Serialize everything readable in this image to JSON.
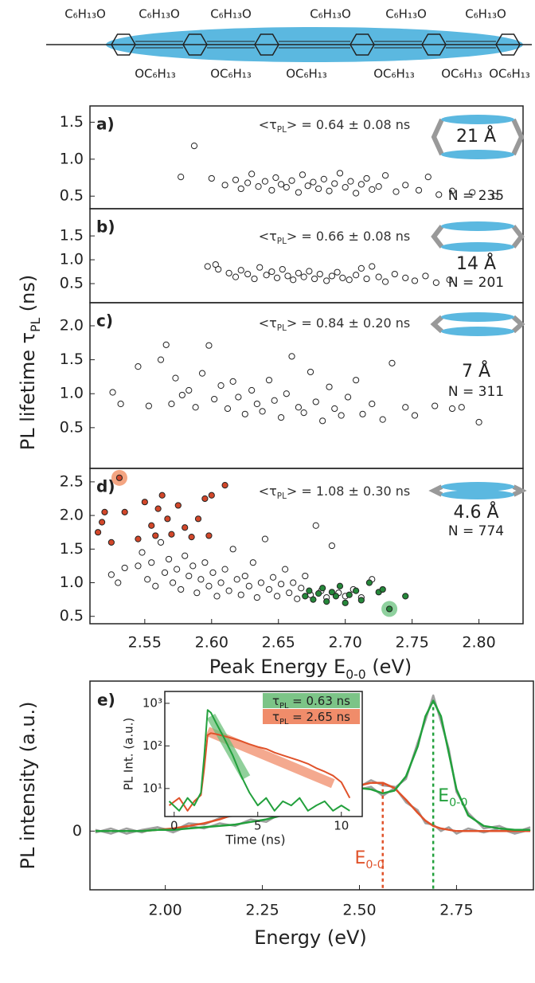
{
  "molecule": {
    "top_labels": [
      "C₆H₁₃O",
      "C₆H₁₃O",
      "C₆H₁₃O",
      "C₆H₁₃O",
      "C₆H₁₃O",
      "C₆H₁₃O"
    ],
    "bottom_labels": [
      "OC₆H₁₃",
      "OC₆H₁₃",
      "OC₆H₁₃",
      "OC₆H₁₃",
      "OC₆H₁₃",
      "OC₆H₁₃"
    ]
  },
  "chart_data": [
    {
      "type": "scatter",
      "label": "a)",
      "ylabel": {
        "text": "PL lifetime τ",
        "sub": "PL",
        "suffix": " (ns)"
      },
      "annotation": {
        "text": "<τ",
        "sub": "PL",
        "suffix": "> = 0.64 ± 0.08 ns"
      },
      "spacer_label": "21 Å",
      "count_label": "N = 235",
      "xlim": [
        2.509,
        2.833
      ],
      "ylim": [
        0.33,
        1.72
      ],
      "yticks": [
        0.5,
        {
          "value": 1.0,
          "label": "1.0"
        },
        1.5
      ],
      "series": [
        {
          "color": "#ffffff",
          "x": [
            2.577,
            2.587,
            2.6,
            2.61,
            2.618,
            2.622,
            2.627,
            2.63,
            2.635,
            2.64,
            2.645,
            2.648,
            2.652,
            2.656,
            2.66,
            2.665,
            2.668,
            2.672,
            2.676,
            2.68,
            2.684,
            2.688,
            2.692,
            2.696,
            2.7,
            2.704,
            2.708,
            2.712,
            2.716,
            2.72,
            2.725,
            2.73,
            2.738,
            2.745,
            2.755,
            2.762,
            2.77,
            2.78,
            2.795,
            2.812
          ],
          "values": [
            0.76,
            1.18,
            0.74,
            0.65,
            0.72,
            0.6,
            0.68,
            0.8,
            0.63,
            0.7,
            0.58,
            0.75,
            0.66,
            0.62,
            0.71,
            0.55,
            0.79,
            0.64,
            0.69,
            0.6,
            0.73,
            0.57,
            0.67,
            0.81,
            0.62,
            0.7,
            0.54,
            0.66,
            0.74,
            0.59,
            0.63,
            0.78,
            0.56,
            0.65,
            0.58,
            0.76,
            0.52,
            0.57,
            0.55,
            0.5
          ]
        }
      ]
    },
    {
      "type": "scatter",
      "label": "b)",
      "annotation": {
        "text": "<τ",
        "sub": "PL",
        "suffix": "> = 0.66 ± 0.08 ns"
      },
      "spacer_label": "14 Å",
      "count_label": "N = 201",
      "xlim": [
        2.509,
        2.833
      ],
      "ylim": [
        0.1,
        2.07
      ],
      "yticks": [
        0.5,
        {
          "value": 1.0,
          "label": "1.0"
        },
        1.5
      ],
      "series": [
        {
          "color": "#ffffff",
          "x": [
            2.597,
            2.603,
            2.605,
            2.613,
            2.618,
            2.622,
            2.627,
            2.632,
            2.636,
            2.641,
            2.645,
            2.649,
            2.653,
            2.657,
            2.661,
            2.665,
            2.669,
            2.673,
            2.677,
            2.681,
            2.686,
            2.69,
            2.694,
            2.698,
            2.703,
            2.708,
            2.712,
            2.716,
            2.72,
            2.725,
            2.73,
            2.737,
            2.745,
            2.752,
            2.76,
            2.768,
            2.778
          ],
          "values": [
            0.86,
            0.9,
            0.8,
            0.72,
            0.64,
            0.78,
            0.7,
            0.6,
            0.84,
            0.68,
            0.75,
            0.62,
            0.8,
            0.66,
            0.58,
            0.72,
            0.64,
            0.76,
            0.6,
            0.7,
            0.56,
            0.66,
            0.74,
            0.62,
            0.58,
            0.68,
            0.82,
            0.6,
            0.86,
            0.64,
            0.54,
            0.7,
            0.62,
            0.56,
            0.66,
            0.52,
            0.58
          ]
        }
      ]
    },
    {
      "type": "scatter",
      "label": "c)",
      "annotation": {
        "text": "<τ",
        "sub": "PL",
        "suffix": "> = 0.84 ± 0.20 ns"
      },
      "spacer_label": "7 Å",
      "count_label": "N = 311",
      "xlim": [
        2.509,
        2.833
      ],
      "ylim": [
        -0.1,
        2.34
      ],
      "yticks": [
        0.5,
        {
          "value": 1.0,
          "label": "1.0"
        },
        1.5,
        {
          "value": 2.0,
          "label": "2.0"
        }
      ],
      "series": [
        {
          "color": "#ffffff",
          "x": [
            2.526,
            2.532,
            2.545,
            2.553,
            2.562,
            2.566,
            2.57,
            2.573,
            2.578,
            2.583,
            2.588,
            2.593,
            2.598,
            2.602,
            2.607,
            2.612,
            2.616,
            2.62,
            2.625,
            2.63,
            2.634,
            2.638,
            2.643,
            2.647,
            2.652,
            2.656,
            2.66,
            2.665,
            2.669,
            2.674,
            2.678,
            2.683,
            2.688,
            2.692,
            2.697,
            2.702,
            2.708,
            2.713,
            2.72,
            2.728,
            2.735,
            2.745,
            2.752,
            2.767,
            2.78,
            2.787,
            2.8
          ],
          "values": [
            1.02,
            0.85,
            1.4,
            0.82,
            1.5,
            1.72,
            0.85,
            1.23,
            0.98,
            1.05,
            0.8,
            1.3,
            1.71,
            0.92,
            1.12,
            0.78,
            1.18,
            0.95,
            0.7,
            1.05,
            0.85,
            0.74,
            1.2,
            0.9,
            0.65,
            1.0,
            1.55,
            0.8,
            0.72,
            1.32,
            0.88,
            0.6,
            1.1,
            0.78,
            0.68,
            0.95,
            1.2,
            0.7,
            0.85,
            0.62,
            1.45,
            0.8,
            0.68,
            0.82,
            0.78,
            0.8,
            0.58
          ]
        }
      ]
    },
    {
      "type": "scatter",
      "label": "d)",
      "xlabel": {
        "text": "Peak Energy E",
        "sub": "0-0",
        "suffix": " (eV)"
      },
      "annotation": {
        "text": "<τ",
        "sub": "PL",
        "suffix": "> = 1.08 ± 0.30 ns"
      },
      "spacer_label": "4.6 Å",
      "count_label": "N = 774",
      "xlim": [
        2.509,
        2.833
      ],
      "ylim": [
        0.39,
        2.7
      ],
      "xticks": [
        2.55,
        {
          "value": 2.6,
          "label": "2.60"
        },
        2.65,
        {
          "value": 2.7,
          "label": "2.70"
        },
        2.75,
        {
          "value": 2.8,
          "label": "2.80"
        }
      ],
      "yticks": [
        0.5,
        {
          "value": 1.0,
          "label": "1.0"
        },
        1.5,
        {
          "value": 2.0,
          "label": "2.0"
        },
        2.5
      ],
      "series": [
        {
          "color": "#ffffff",
          "x": [
            2.525,
            2.53,
            2.535,
            2.545,
            2.548,
            2.552,
            2.555,
            2.558,
            2.562,
            2.565,
            2.568,
            2.571,
            2.574,
            2.577,
            2.58,
            2.583,
            2.586,
            2.589,
            2.592,
            2.595,
            2.598,
            2.601,
            2.604,
            2.607,
            2.61,
            2.613,
            2.616,
            2.619,
            2.622,
            2.625,
            2.628,
            2.631,
            2.634,
            2.637,
            2.64,
            2.643,
            2.646,
            2.649,
            2.652,
            2.655,
            2.658,
            2.661,
            2.664,
            2.667,
            2.67,
            2.674,
            2.678,
            2.682,
            2.686,
            2.69,
            2.695,
            2.7,
            2.706,
            2.712,
            2.72
          ],
          "values": [
            1.12,
            1.0,
            1.22,
            1.25,
            1.45,
            1.05,
            1.3,
            0.95,
            1.6,
            1.15,
            1.35,
            1.0,
            1.2,
            0.9,
            1.4,
            1.1,
            1.25,
            0.85,
            1.05,
            1.3,
            0.95,
            1.15,
            0.8,
            1.0,
            1.2,
            0.88,
            1.5,
            1.05,
            0.82,
            1.1,
            0.95,
            1.3,
            0.78,
            1.0,
            1.65,
            0.9,
            1.08,
            0.8,
            0.98,
            1.2,
            0.85,
            1.0,
            0.76,
            0.92,
            1.1,
            0.82,
            1.85,
            0.88,
            0.78,
            1.55,
            0.85,
            0.8,
            0.9,
            0.78,
            1.05
          ]
        },
        {
          "color": "#d2472a",
          "x": [
            2.515,
            2.518,
            2.52,
            2.525,
            2.535,
            2.545,
            2.55,
            2.555,
            2.558,
            2.56,
            2.563,
            2.567,
            2.57,
            2.575,
            2.58,
            2.585,
            2.59,
            2.595,
            2.598,
            2.6,
            2.61
          ],
          "values": [
            1.75,
            1.9,
            2.05,
            1.6,
            2.05,
            1.65,
            2.2,
            1.85,
            1.7,
            2.1,
            2.3,
            1.95,
            1.72,
            2.15,
            1.82,
            1.68,
            1.95,
            2.25,
            1.7,
            2.3,
            2.45
          ]
        },
        {
          "color": "#25883a",
          "x": [
            2.67,
            2.673,
            2.676,
            2.68,
            2.683,
            2.686,
            2.69,
            2.693,
            2.696,
            2.7,
            2.703,
            2.708,
            2.712,
            2.718,
            2.725,
            2.728,
            2.745
          ],
          "values": [
            0.8,
            0.88,
            0.75,
            0.84,
            0.92,
            0.72,
            0.86,
            0.8,
            0.95,
            0.7,
            0.82,
            0.88,
            0.74,
            1.0,
            0.86,
            0.9,
            0.8
          ]
        },
        {
          "color": "#d2472a",
          "halo": "#f4a582",
          "x": [
            2.531
          ],
          "values": [
            2.56
          ]
        },
        {
          "color": "#25883a",
          "halo": "#8fd19e",
          "x": [
            2.733
          ],
          "values": [
            0.61
          ]
        }
      ]
    },
    {
      "type": "line",
      "label": "e)",
      "ylabel": "PL intensity (a.u.)",
      "xlabel": "Energy (eV)",
      "xlim": [
        1.806,
        2.948
      ],
      "ylim": [
        -0.45,
        1.15
      ],
      "xticks": [
        {
          "value": 2.0,
          "label": "2.00"
        },
        2.25,
        {
          "value": 2.5,
          "label": "2.50"
        },
        2.75
      ],
      "yticks": [
        0
      ],
      "x": [
        1.82,
        1.86,
        1.9,
        1.94,
        1.98,
        2.02,
        2.06,
        2.1,
        2.14,
        2.18,
        2.22,
        2.26,
        2.3,
        2.34,
        2.38,
        2.42,
        2.46,
        2.5,
        2.53,
        2.56,
        2.59,
        2.62,
        2.65,
        2.67,
        2.69,
        2.71,
        2.73,
        2.75,
        2.78,
        2.82,
        2.86,
        2.9,
        2.94
      ],
      "series": [
        {
          "color": "#a0a0a0",
          "values": [
            0.01,
            -0.02,
            0.02,
            -0.01,
            0.03,
            -0.01,
            0.04,
            0.02,
            0.06,
            0.04,
            0.09,
            0.07,
            0.14,
            0.13,
            0.22,
            0.21,
            0.31,
            0.32,
            0.34,
            0.27,
            0.33,
            0.4,
            0.68,
            0.85,
            1.04,
            0.84,
            0.63,
            0.3,
            0.14,
            0.02,
            0.04,
            -0.01,
            0.03
          ]
        },
        {
          "color": "#a0a0a0",
          "values": [
            -0.01,
            0.02,
            -0.02,
            0.01,
            0.03,
            0.0,
            0.06,
            0.05,
            0.1,
            0.12,
            0.18,
            0.17,
            0.24,
            0.22,
            0.28,
            0.25,
            0.33,
            0.34,
            0.39,
            0.35,
            0.34,
            0.22,
            0.16,
            0.06,
            0.05,
            0.0,
            0.03,
            -0.02,
            0.02,
            -0.01,
            0.02,
            -0.02,
            0.01
          ]
        },
        {
          "color": "#e0522a",
          "values": [
            0,
            0,
            0,
            0,
            0.01,
            0.02,
            0.04,
            0.06,
            0.09,
            0.13,
            0.16,
            0.19,
            0.22,
            0.24,
            0.26,
            0.27,
            0.31,
            0.35,
            0.37,
            0.37,
            0.33,
            0.24,
            0.14,
            0.08,
            0.04,
            0.02,
            0.01,
            0,
            0,
            0,
            0,
            0,
            0
          ]
        },
        {
          "color": "#22a03c",
          "values": [
            0,
            0,
            0,
            0,
            0.01,
            0.01,
            0.02,
            0.03,
            0.04,
            0.05,
            0.07,
            0.09,
            0.12,
            0.15,
            0.19,
            0.24,
            0.29,
            0.33,
            0.32,
            0.29,
            0.31,
            0.42,
            0.65,
            0.88,
            1.0,
            0.88,
            0.6,
            0.32,
            0.12,
            0.04,
            0.02,
            0.01,
            0.01
          ]
        }
      ],
      "peaks": [
        {
          "x": 2.69,
          "top": 1.0,
          "color": "#22a03c",
          "label": {
            "text": "E",
            "sub": "0-0"
          }
        },
        {
          "x": 2.56,
          "top": 0.37,
          "color": "#e0522a",
          "label": {
            "text": "E",
            "sub": "0-0"
          }
        }
      ]
    },
    {
      "type": "line",
      "log_y": true,
      "ylabel": "PL Int. (a.u.)",
      "xlabel": "Time (ns)",
      "xlim": [
        -0.56,
        11.25
      ],
      "ylim": [
        2.2,
        1900
      ],
      "xticks": [
        0,
        5,
        10
      ],
      "yticks": [
        {
          "value": 10,
          "label": "10¹"
        },
        {
          "value": 100,
          "label": "10²"
        },
        {
          "value": 1000,
          "label": "10³"
        }
      ],
      "x": [
        -0.3,
        0.3,
        0.8,
        1.2,
        1.6,
        1.8,
        2.0,
        2.2,
        2.5,
        3.0,
        3.5,
        4.0,
        4.5,
        5.0,
        5.5,
        6,
        6.5,
        7,
        7.5,
        8,
        8.5,
        9,
        9.5,
        10,
        10.5
      ],
      "series": [
        {
          "color": "#e0522a",
          "values": [
            4,
            6,
            3,
            5,
            7,
            30,
            180,
            200,
            190,
            170,
            150,
            130,
            110,
            95,
            85,
            70,
            60,
            52,
            45,
            38,
            30,
            25,
            20,
            14,
            6
          ]
        },
        {
          "color": "#22a03c",
          "values": [
            5,
            3,
            6,
            4,
            8,
            60,
            700,
            600,
            350,
            150,
            60,
            20,
            8,
            4,
            6,
            3,
            5,
            4,
            6,
            3,
            4,
            5,
            3,
            4,
            3
          ]
        }
      ],
      "fits": [
        {
          "color": "#f08c6a",
          "x": [
            2.0,
            9.5
          ],
          "y": [
            220,
            13
          ]
        },
        {
          "color": "#6cc07a",
          "x": [
            2.2,
            4.3
          ],
          "y": [
            500,
            18
          ]
        }
      ],
      "legend": [
        {
          "color": "#7cc487",
          "text": "τ",
          "sub": "PL",
          "suffix": " = 0.63 ns"
        },
        {
          "color": "#f08c6a",
          "text": "τ",
          "sub": "PL",
          "suffix": " = 2.65 ns"
        }
      ]
    }
  ]
}
